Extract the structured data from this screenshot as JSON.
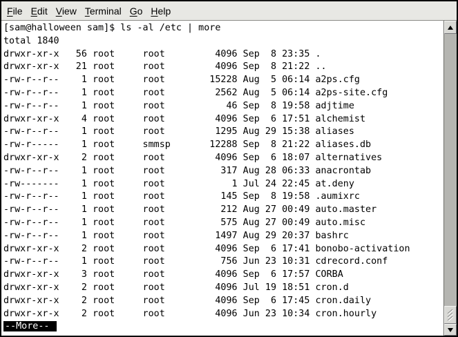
{
  "menubar": {
    "items": [
      {
        "label": "File"
      },
      {
        "label": "Edit"
      },
      {
        "label": "View"
      },
      {
        "label": "Terminal"
      },
      {
        "label": "Go"
      },
      {
        "label": "Help"
      }
    ]
  },
  "terminal": {
    "command_line": "[sam@halloween sam]$ ls -al /etc | more",
    "output_lines": [
      "total 1840",
      "drwxr-xr-x   56 root     root         4096 Sep  8 23:35 .",
      "drwxr-xr-x   21 root     root         4096 Sep  8 21:22 ..",
      "-rw-r--r--    1 root     root        15228 Aug  5 06:14 a2ps.cfg",
      "-rw-r--r--    1 root     root         2562 Aug  5 06:14 a2ps-site.cfg",
      "-rw-r--r--    1 root     root           46 Sep  8 19:58 adjtime",
      "drwxr-xr-x    4 root     root         4096 Sep  6 17:51 alchemist",
      "-rw-r--r--    1 root     root         1295 Aug 29 15:38 aliases",
      "-rw-r-----    1 root     smmsp       12288 Sep  8 21:22 aliases.db",
      "drwxr-xr-x    2 root     root         4096 Sep  6 18:07 alternatives",
      "-rw-r--r--    1 root     root          317 Aug 28 06:33 anacrontab",
      "-rw-------    1 root     root            1 Jul 24 22:45 at.deny",
      "-rw-r--r--    1 root     root          145 Sep  8 19:58 .aumixrc",
      "-rw-r--r--    1 root     root          212 Aug 27 00:49 auto.master",
      "-rw-r--r--    1 root     root          575 Aug 27 00:49 auto.misc",
      "-rw-r--r--    1 root     root         1497 Aug 29 20:37 bashrc",
      "drwxr-xr-x    2 root     root         4096 Sep  6 17:41 bonobo-activation",
      "-rw-r--r--    1 root     root          756 Jun 23 10:31 cdrecord.conf",
      "drwxr-xr-x    3 root     root         4096 Sep  6 17:57 CORBA",
      "drwxr-xr-x    2 root     root         4096 Jul 19 18:51 cron.d",
      "drwxr-xr-x    2 root     root         4096 Sep  6 17:45 cron.daily",
      "drwxr-xr-x    2 root     root         4096 Jun 23 10:34 cron.hourly"
    ],
    "more_prompt": "--More--"
  },
  "scrollbar": {
    "icons": {
      "up": "triangle-up",
      "down": "triangle-down",
      "thumb_grip": "diagonal-grip"
    }
  },
  "colors": {
    "window_border": "#000000",
    "menubar_bg": "#e8e8e4",
    "menubar_border": "#8a8a86",
    "terminal_bg": "#ffffff",
    "terminal_fg": "#000000",
    "more_bg": "#000000",
    "more_fg": "#ffffff",
    "scrollbar_trough": "#b5b5b1",
    "scrollbar_face": "#d9d9d5"
  }
}
